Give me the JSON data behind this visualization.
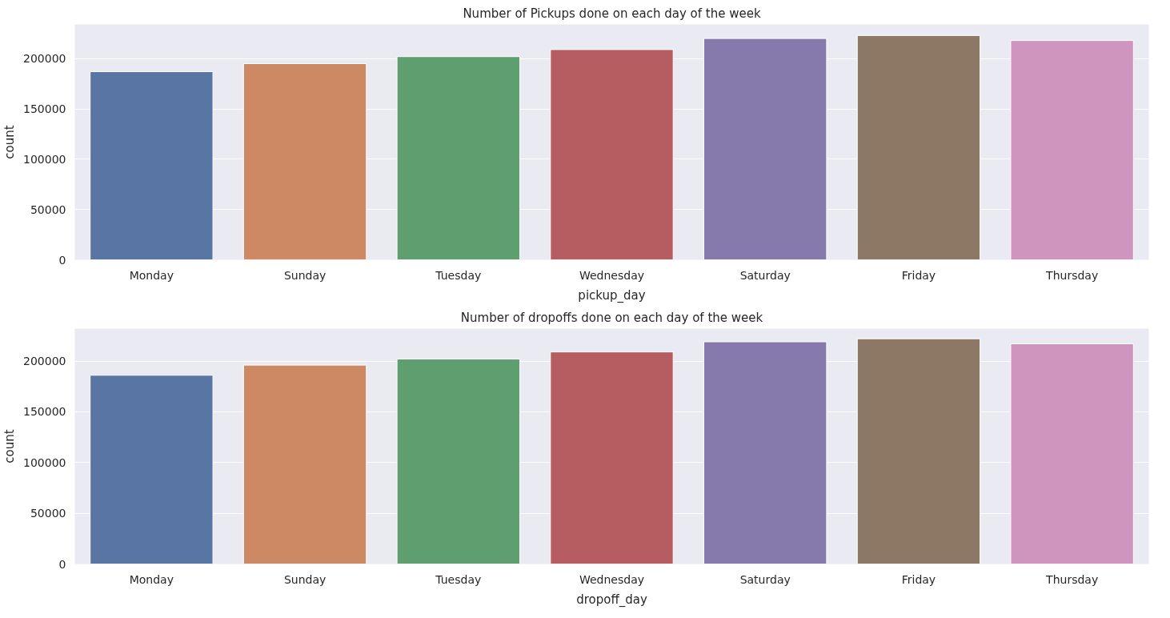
{
  "chart_data": [
    {
      "type": "bar",
      "title": "Number of Pickups done on each day of the week",
      "xlabel": "pickup_day",
      "ylabel": "count",
      "categories": [
        "Monday",
        "Sunday",
        "Tuesday",
        "Wednesday",
        "Saturday",
        "Friday",
        "Thursday"
      ],
      "values": [
        187000,
        195000,
        202000,
        209000,
        220000,
        223000,
        218000
      ],
      "colors": [
        "#5975a4",
        "#cc8963",
        "#5f9e6e",
        "#b55d60",
        "#857aab",
        "#8d7866",
        "#d095bf"
      ],
      "ylim": [
        0,
        234000
      ],
      "yticks": [
        0,
        50000,
        100000,
        150000,
        200000
      ],
      "grid": true
    },
    {
      "type": "bar",
      "title": "Number of dropoffs done on each day of the week",
      "xlabel": "dropoff_day",
      "ylabel": "count",
      "categories": [
        "Monday",
        "Sunday",
        "Tuesday",
        "Wednesday",
        "Saturday",
        "Friday",
        "Thursday"
      ],
      "values": [
        186000,
        196000,
        202000,
        209000,
        219000,
        222000,
        217000
      ],
      "colors": [
        "#5975a4",
        "#cc8963",
        "#5f9e6e",
        "#b55d60",
        "#857aab",
        "#8d7866",
        "#d095bf"
      ],
      "ylim": [
        0,
        232000
      ],
      "yticks": [
        0,
        50000,
        100000,
        150000,
        200000
      ],
      "grid": true
    }
  ]
}
